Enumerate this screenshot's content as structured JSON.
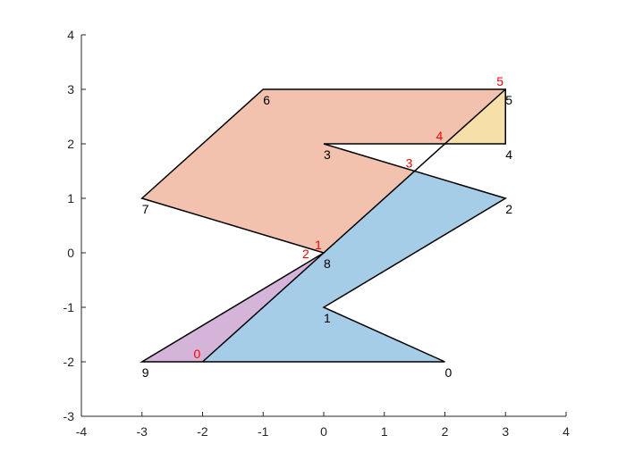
{
  "chart_data": {
    "type": "polygon-diagram",
    "xlim": [
      -4,
      4
    ],
    "ylim": [
      -3,
      4
    ],
    "x_ticks": [
      "-4",
      "-3",
      "-2",
      "-1",
      "0",
      "1",
      "2",
      "3",
      "4"
    ],
    "y_ticks": [
      "-3",
      "-2",
      "-1",
      "0",
      "1",
      "2",
      "3",
      "4"
    ],
    "polygons": [
      {
        "name": "blue-region",
        "fill": "#a6cde8",
        "points": [
          [
            -2,
            -2
          ],
          [
            2,
            -2
          ],
          [
            0,
            -1
          ],
          [
            3,
            1
          ],
          [
            1.5,
            1.5
          ],
          [
            0,
            0
          ]
        ]
      },
      {
        "name": "purple-region",
        "fill": "#d4b4d8",
        "points": [
          [
            -3,
            -2
          ],
          [
            -2,
            -2
          ],
          [
            0,
            0
          ]
        ]
      },
      {
        "name": "salmon-region",
        "fill": "#f2c2ae",
        "points": [
          [
            0,
            0
          ],
          [
            1.5,
            1.5
          ],
          [
            0,
            2
          ],
          [
            2,
            2
          ],
          [
            3,
            3
          ],
          [
            -1,
            3
          ],
          [
            -3,
            1
          ]
        ]
      },
      {
        "name": "yellow-region",
        "fill": "#f6dfa8",
        "points": [
          [
            2,
            2
          ],
          [
            3,
            2
          ],
          [
            3,
            3
          ]
        ]
      }
    ],
    "outline": [
      [
        2,
        -2
      ],
      [
        0,
        -1
      ],
      [
        3,
        1
      ],
      [
        0,
        2
      ],
      [
        3,
        2
      ],
      [
        3,
        3
      ],
      [
        -1,
        3
      ],
      [
        -3,
        1
      ],
      [
        0,
        0
      ],
      [
        -3,
        -2
      ],
      [
        2,
        -2
      ]
    ],
    "extra_edge": [
      [
        -2,
        -2
      ],
      [
        3,
        3
      ]
    ],
    "vertex_labels": [
      {
        "text": "0",
        "x": 2,
        "y": -2
      },
      {
        "text": "1",
        "x": 0,
        "y": -1
      },
      {
        "text": "2",
        "x": 3,
        "y": 1
      },
      {
        "text": "3",
        "x": 0,
        "y": 2
      },
      {
        "text": "4",
        "x": 3,
        "y": 2
      },
      {
        "text": "5",
        "x": 3,
        "y": 3
      },
      {
        "text": "6",
        "x": -1,
        "y": 3
      },
      {
        "text": "7",
        "x": -3,
        "y": 1
      },
      {
        "text": "8",
        "x": 0,
        "y": 0
      },
      {
        "text": "9",
        "x": -3,
        "y": -2
      }
    ],
    "intersection_labels": [
      {
        "text": "0",
        "x": -2,
        "y": -2
      },
      {
        "text": "1",
        "x": 0,
        "y": 0
      },
      {
        "text": "2",
        "x": 0,
        "y": 0
      },
      {
        "text": "3",
        "x": 1.5,
        "y": 1.5
      },
      {
        "text": "4",
        "x": 2,
        "y": 2
      },
      {
        "text": "5",
        "x": 3,
        "y": 3
      }
    ]
  }
}
